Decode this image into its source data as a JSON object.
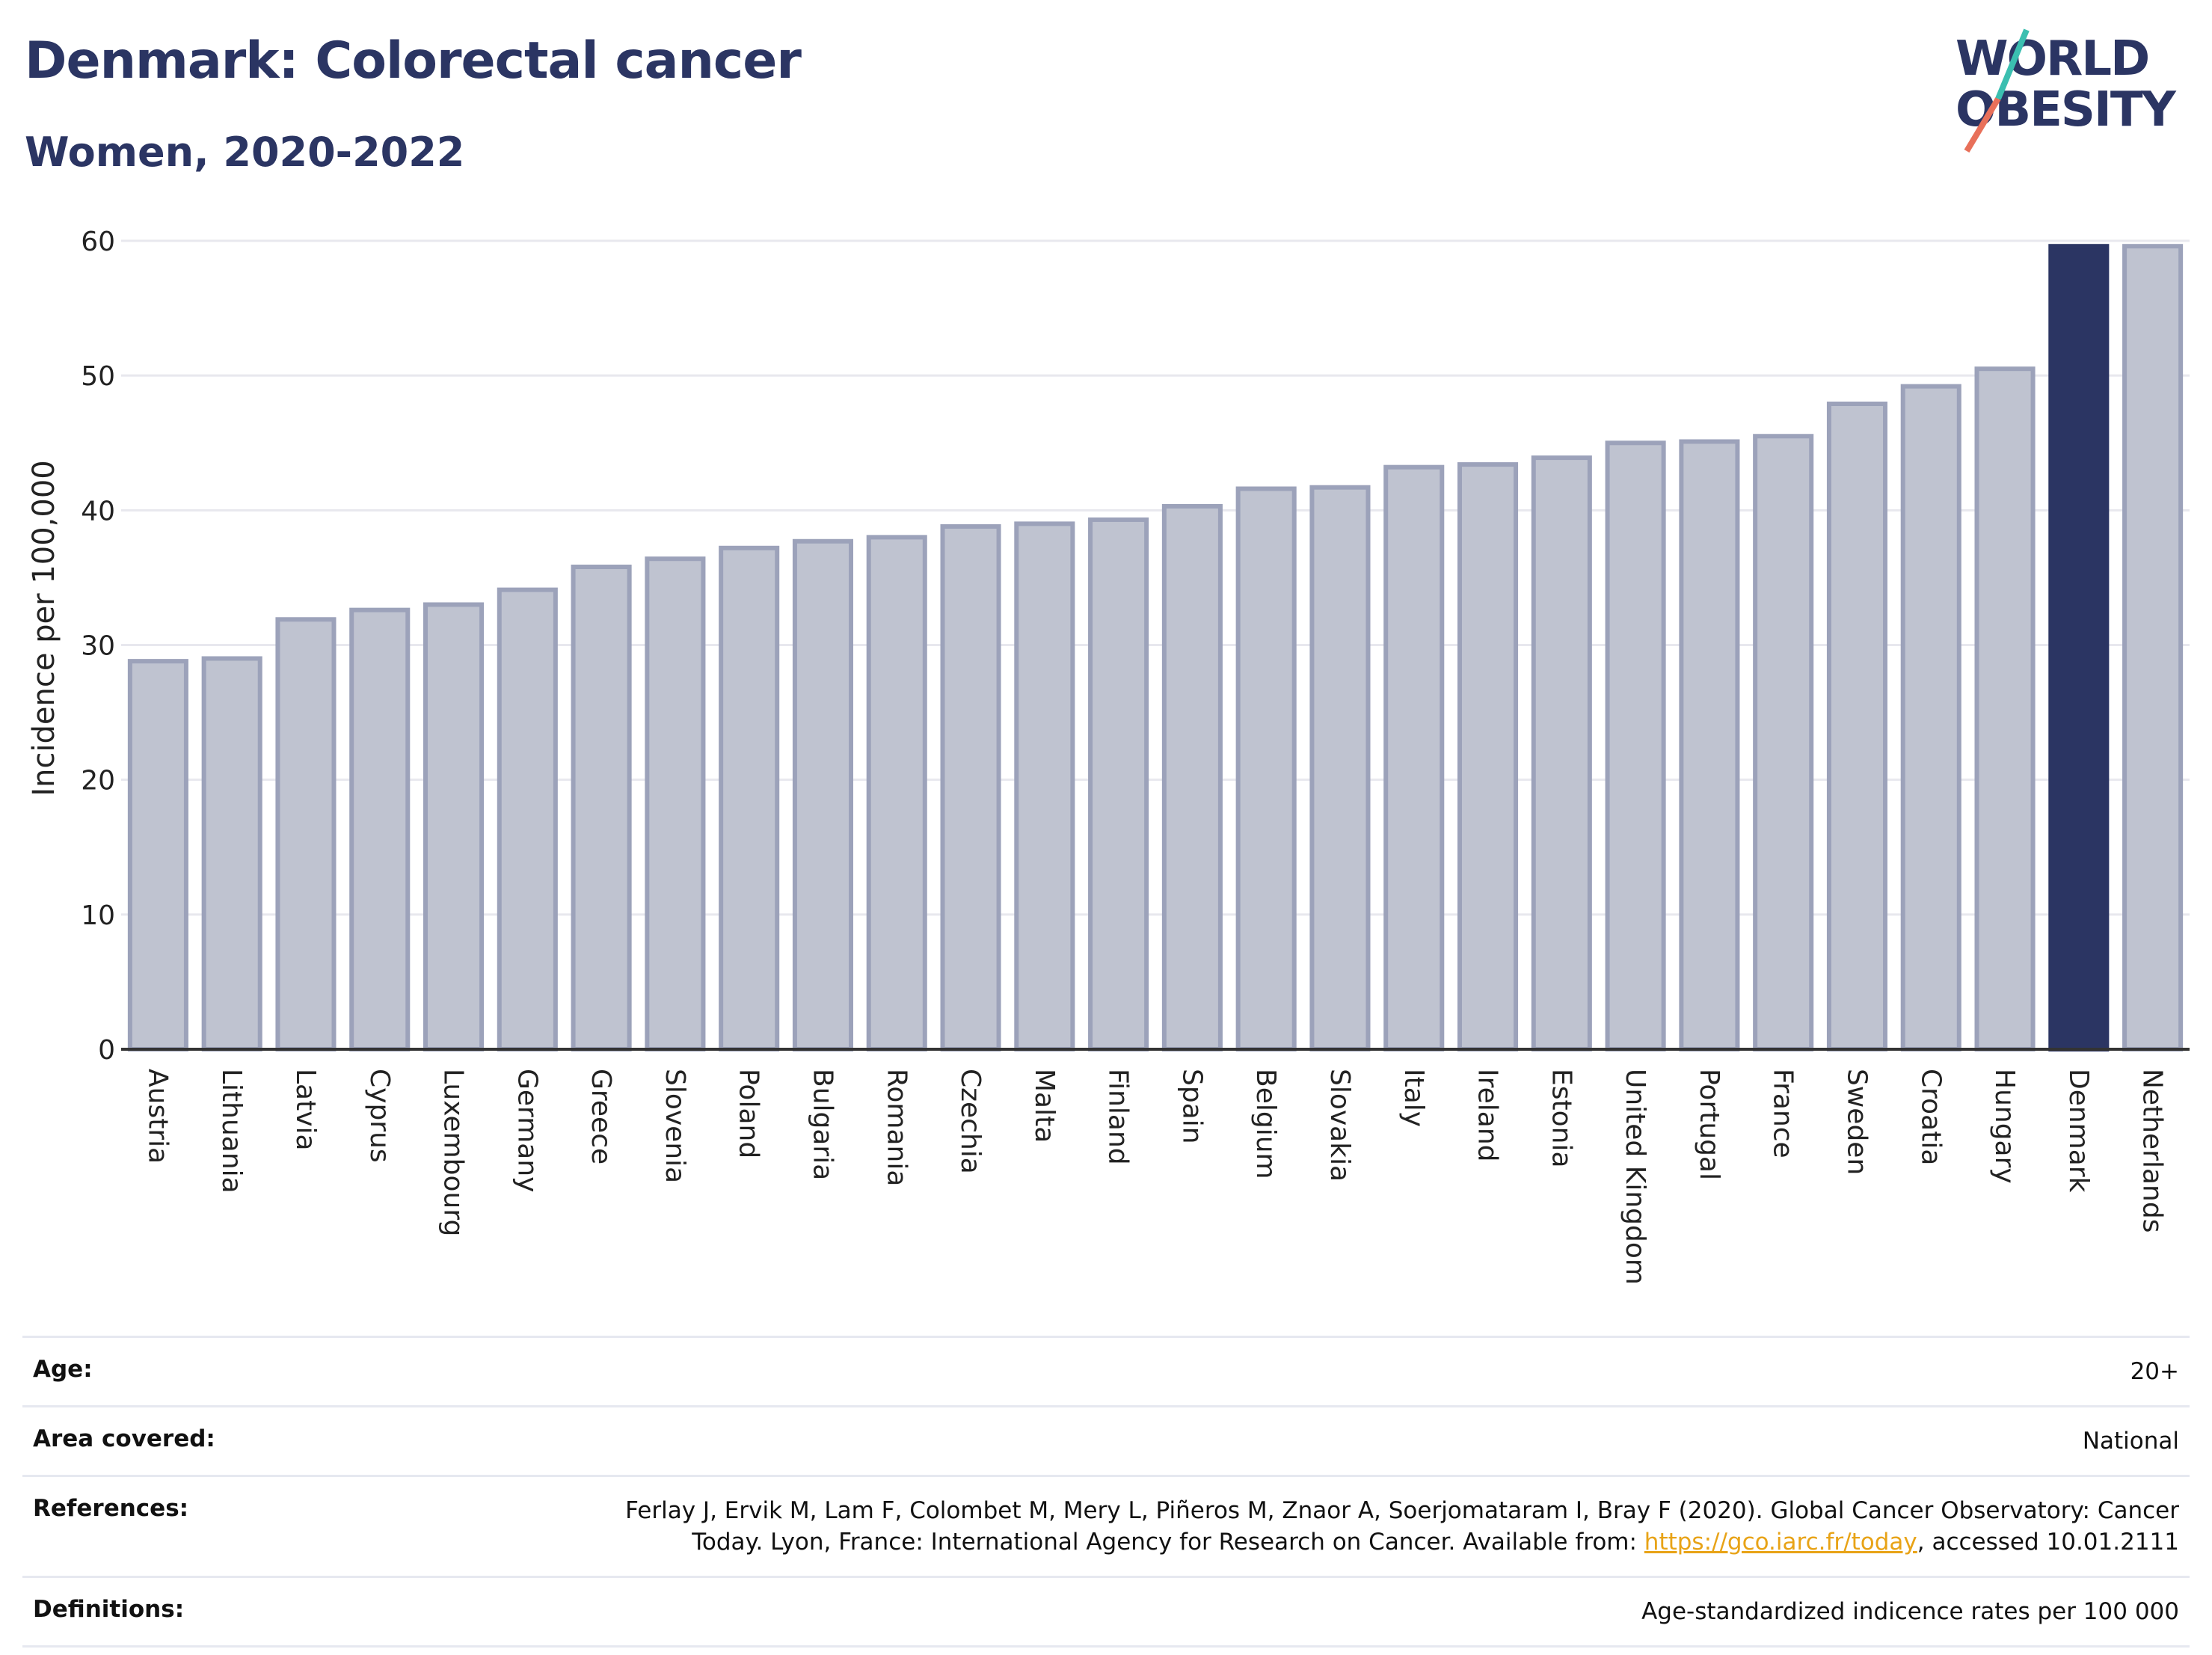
{
  "header": {
    "title": "Denmark: Colorectal cancer",
    "subtitle": "Women, 2020-2022"
  },
  "logo": {
    "line1": "WORLD",
    "line2": "OBESITY"
  },
  "chart_data": {
    "type": "bar",
    "title": "Denmark: Colorectal cancer",
    "subtitle": "Women, 2020-2022",
    "xlabel": "",
    "ylabel": "Incidence per 100,000",
    "ylim": [
      0,
      60
    ],
    "yticks": [
      0,
      10,
      20,
      30,
      40,
      50,
      60
    ],
    "grid": true,
    "categories": [
      "Austria",
      "Lithuania",
      "Latvia",
      "Cyprus",
      "Luxembourg",
      "Germany",
      "Greece",
      "Slovenia",
      "Poland",
      "Bulgaria",
      "Romania",
      "Czechia",
      "Malta",
      "Finland",
      "Spain",
      "Belgium",
      "Slovakia",
      "Italy",
      "Ireland",
      "Estonia",
      "United Kingdom",
      "Portugal",
      "France",
      "Sweden",
      "Croatia",
      "Hungary",
      "Denmark",
      "Netherlands"
    ],
    "values": [
      28.8,
      29.0,
      31.9,
      32.6,
      33.0,
      34.1,
      35.8,
      36.4,
      37.2,
      37.7,
      38.0,
      38.8,
      39.0,
      39.3,
      40.3,
      41.6,
      41.7,
      43.2,
      43.4,
      43.9,
      45.0,
      45.1,
      45.5,
      47.9,
      49.2,
      50.5,
      59.6,
      59.6
    ],
    "highlight": "Denmark",
    "colors": {
      "bar": "#bfc3d0",
      "bar_border": "#9ca2ba",
      "highlight": "#2b3563",
      "grid": "#e8e8ee",
      "axis": "#333333"
    }
  },
  "meta": {
    "age_label": "Age:",
    "age_value": "20+",
    "area_label": "Area covered:",
    "area_value": "National",
    "references_label": "References:",
    "references_text": "Ferlay J, Ervik M, Lam F, Colombet M, Mery L, Piñeros M, Znaor A, Soerjomataram I, Bray F (2020). Global Cancer Observatory: Cancer Today. Lyon, France: International Agency for Research on Cancer. Available from: ",
    "references_link": "https://gco.iarc.fr/today",
    "references_suffix": ", accessed 10.01.2111",
    "definitions_label": "Definitions:",
    "definitions_value": "Age-standardized indicence rates per 100 000"
  }
}
